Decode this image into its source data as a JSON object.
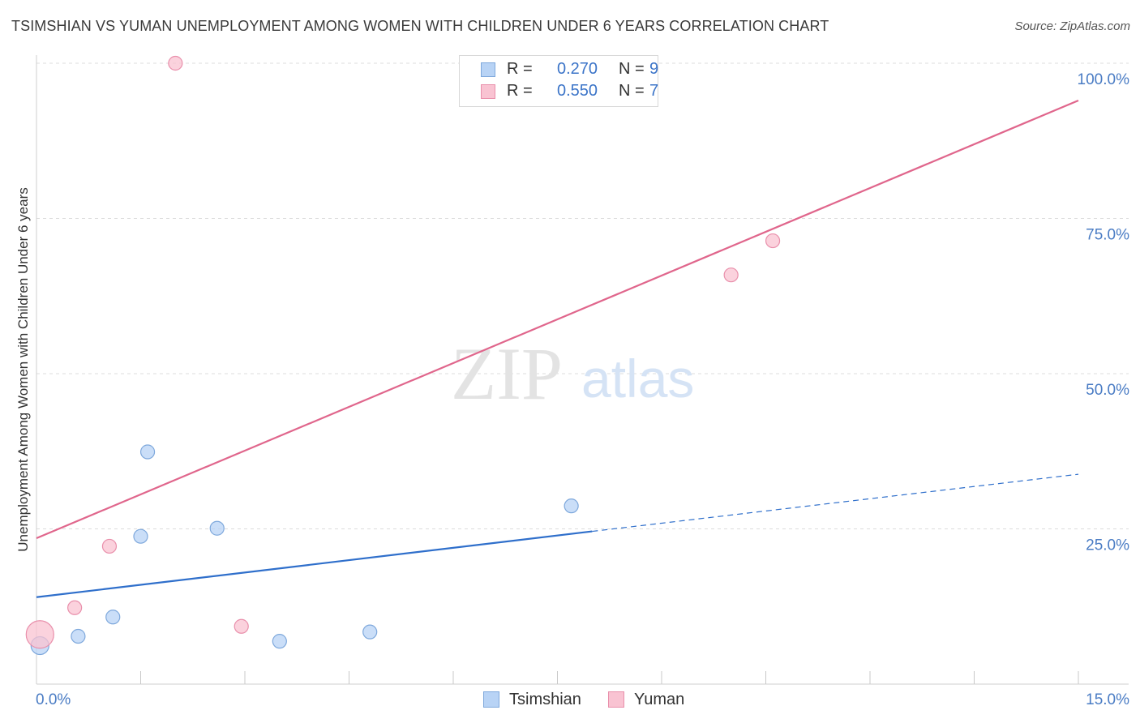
{
  "header": {
    "title": "TSIMSHIAN VS YUMAN UNEMPLOYMENT AMONG WOMEN WITH CHILDREN UNDER 6 YEARS CORRELATION CHART",
    "source": "Source: ZipAtlas.com"
  },
  "watermark": {
    "zip": "ZIP",
    "atlas": "atlas"
  },
  "legend": {
    "rows": [
      {
        "r_label": "R =",
        "r_value": "0.270",
        "n_label": "N =",
        "n_value": "9"
      },
      {
        "r_label": "R =",
        "r_value": "0.550",
        "n_label": "N =",
        "n_value": "7"
      }
    ]
  },
  "bottom_legend": {
    "tsimshian": "Tsimshian",
    "yuman": "Yuman"
  },
  "chart_data": {
    "type": "scatter",
    "title": "TSIMSHIAN VS YUMAN UNEMPLOYMENT AMONG WOMEN WITH CHILDREN UNDER 6 YEARS CORRELATION CHART",
    "ylabel": "Unemployment Among Women with Children Under 6 years",
    "xlim": [
      0,
      15
    ],
    "ylim": [
      0,
      100
    ],
    "x_tick_labels": [
      "0.0%",
      "15.0%"
    ],
    "y_ticks": [
      25,
      50,
      75,
      100
    ],
    "y_tick_labels": [
      "25.0%",
      "50.0%",
      "75.0%",
      "100.0%"
    ],
    "grid": true,
    "legend_position": "top-center",
    "colors": {
      "tsimshian_fill": "#b8d3f5",
      "tsimshian_stroke": "#7ea8dc",
      "tsimshian_line": "#2f6fcb",
      "yuman_fill": "#f9c3d2",
      "yuman_stroke": "#e98fab",
      "yuman_line": "#e0668c"
    },
    "series": [
      {
        "name": "Tsimshian",
        "x": [
          0.05,
          0.6,
          1.1,
          1.5,
          1.6,
          2.6,
          3.5,
          4.8,
          7.7
        ],
        "y": [
          6.2,
          7.7,
          10.8,
          23.8,
          37.4,
          25.1,
          6.9,
          8.4,
          28.7
        ],
        "trend": {
          "x": [
            0,
            8,
            15
          ],
          "y": [
            14.0,
            24.6,
            33.8
          ],
          "solid_until_x": 8
        }
      },
      {
        "name": "Yuman",
        "x": [
          0.05,
          0.55,
          1.05,
          2.0,
          2.95,
          10.0,
          10.6
        ],
        "y": [
          8.0,
          12.3,
          22.2,
          100.0,
          9.3,
          65.9,
          71.4
        ],
        "trend": {
          "x": [
            0,
            15
          ],
          "y": [
            23.5,
            94.0
          ]
        }
      }
    ]
  }
}
